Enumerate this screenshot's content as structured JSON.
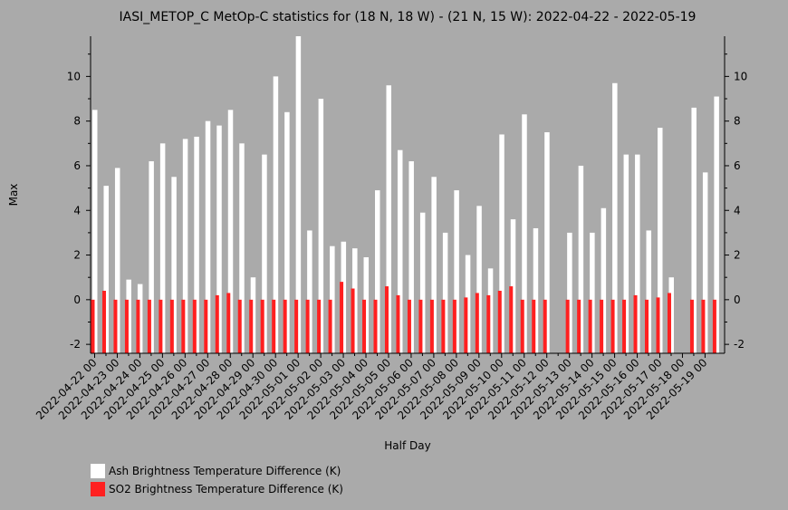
{
  "chart_data": {
    "type": "bar",
    "title": "IASI_METOP_C MetOp-C statistics for (18 N, 18 W) - (21 N, 15 W): 2022-04-22 - 2022-05-19",
    "xlabel": "Half Day",
    "ylabel": "Max",
    "ylim": [
      -2.4,
      11.8
    ],
    "yticks": [
      -2,
      0,
      2,
      4,
      6,
      8,
      10
    ],
    "grid": false,
    "legend_position": "bottom-left",
    "tick_labels": [
      "2022-04-22 00",
      "2022-04-23 00",
      "2022-04-24 00",
      "2022-04-25 00",
      "2022-04-26 00",
      "2022-04-27 00",
      "2022-04-28 00",
      "2022-04-29 00",
      "2022-04-30 00",
      "2022-05-01 00",
      "2022-05-02 00",
      "2022-05-03 00",
      "2022-05-04 00",
      "2022-05-05 00",
      "2022-05-06 00",
      "2022-05-07 00",
      "2022-05-08 00",
      "2022-05-09 00",
      "2022-05-10 00",
      "2022-05-11 00",
      "2022-05-12 00",
      "2022-05-13 00",
      "2022-05-14 00",
      "2022-05-15 00",
      "2022-05-16 00",
      "2022-05-17 00",
      "2022-05-18 00",
      "2022-05-19 00"
    ],
    "series": [
      {
        "name": "Ash Brightness Temperature Difference (K)",
        "color": "#ffffff",
        "values": [
          8.5,
          5.1,
          5.9,
          0.9,
          0.7,
          6.2,
          7.0,
          5.5,
          7.2,
          7.3,
          8.0,
          7.8,
          8.5,
          7.0,
          1.0,
          6.5,
          10.0,
          8.4,
          11.8,
          3.1,
          9.0,
          2.4,
          2.6,
          2.3,
          1.9,
          4.9,
          9.6,
          6.7,
          6.2,
          3.9,
          5.5,
          3.0,
          4.9,
          2.0,
          4.2,
          1.4,
          7.4,
          3.6,
          8.3,
          3.2,
          7.5,
          null,
          3.0,
          6.0,
          3.0,
          4.1,
          9.7,
          6.5,
          6.5,
          3.1,
          7.7,
          1.0,
          null,
          8.6,
          5.7,
          9.1
        ]
      },
      {
        "name": "SO2 Brightness Temperature Difference (K)",
        "color": "#ff2020",
        "values": [
          -0.3,
          0.4,
          -0.2,
          -0.6,
          -0.4,
          -0.4,
          -0.4,
          -0.4,
          -0.6,
          -0.8,
          -0.2,
          0.2,
          0.3,
          0.0,
          -0.8,
          -0.4,
          -0.8,
          -1.0,
          -0.6,
          -0.2,
          -0.6,
          -0.6,
          0.8,
          0.5,
          -0.2,
          -0.3,
          0.6,
          0.2,
          -0.8,
          -0.6,
          -0.8,
          -0.9,
          -0.6,
          0.1,
          0.3,
          0.2,
          0.4,
          0.6,
          -0.5,
          -0.7,
          -0.4,
          null,
          -0.9,
          -0.9,
          0.0,
          -0.6,
          -1.1,
          -0.6,
          0.2,
          -0.5,
          0.1,
          0.3,
          null,
          -0.2,
          -0.3,
          -0.6
        ]
      }
    ]
  }
}
